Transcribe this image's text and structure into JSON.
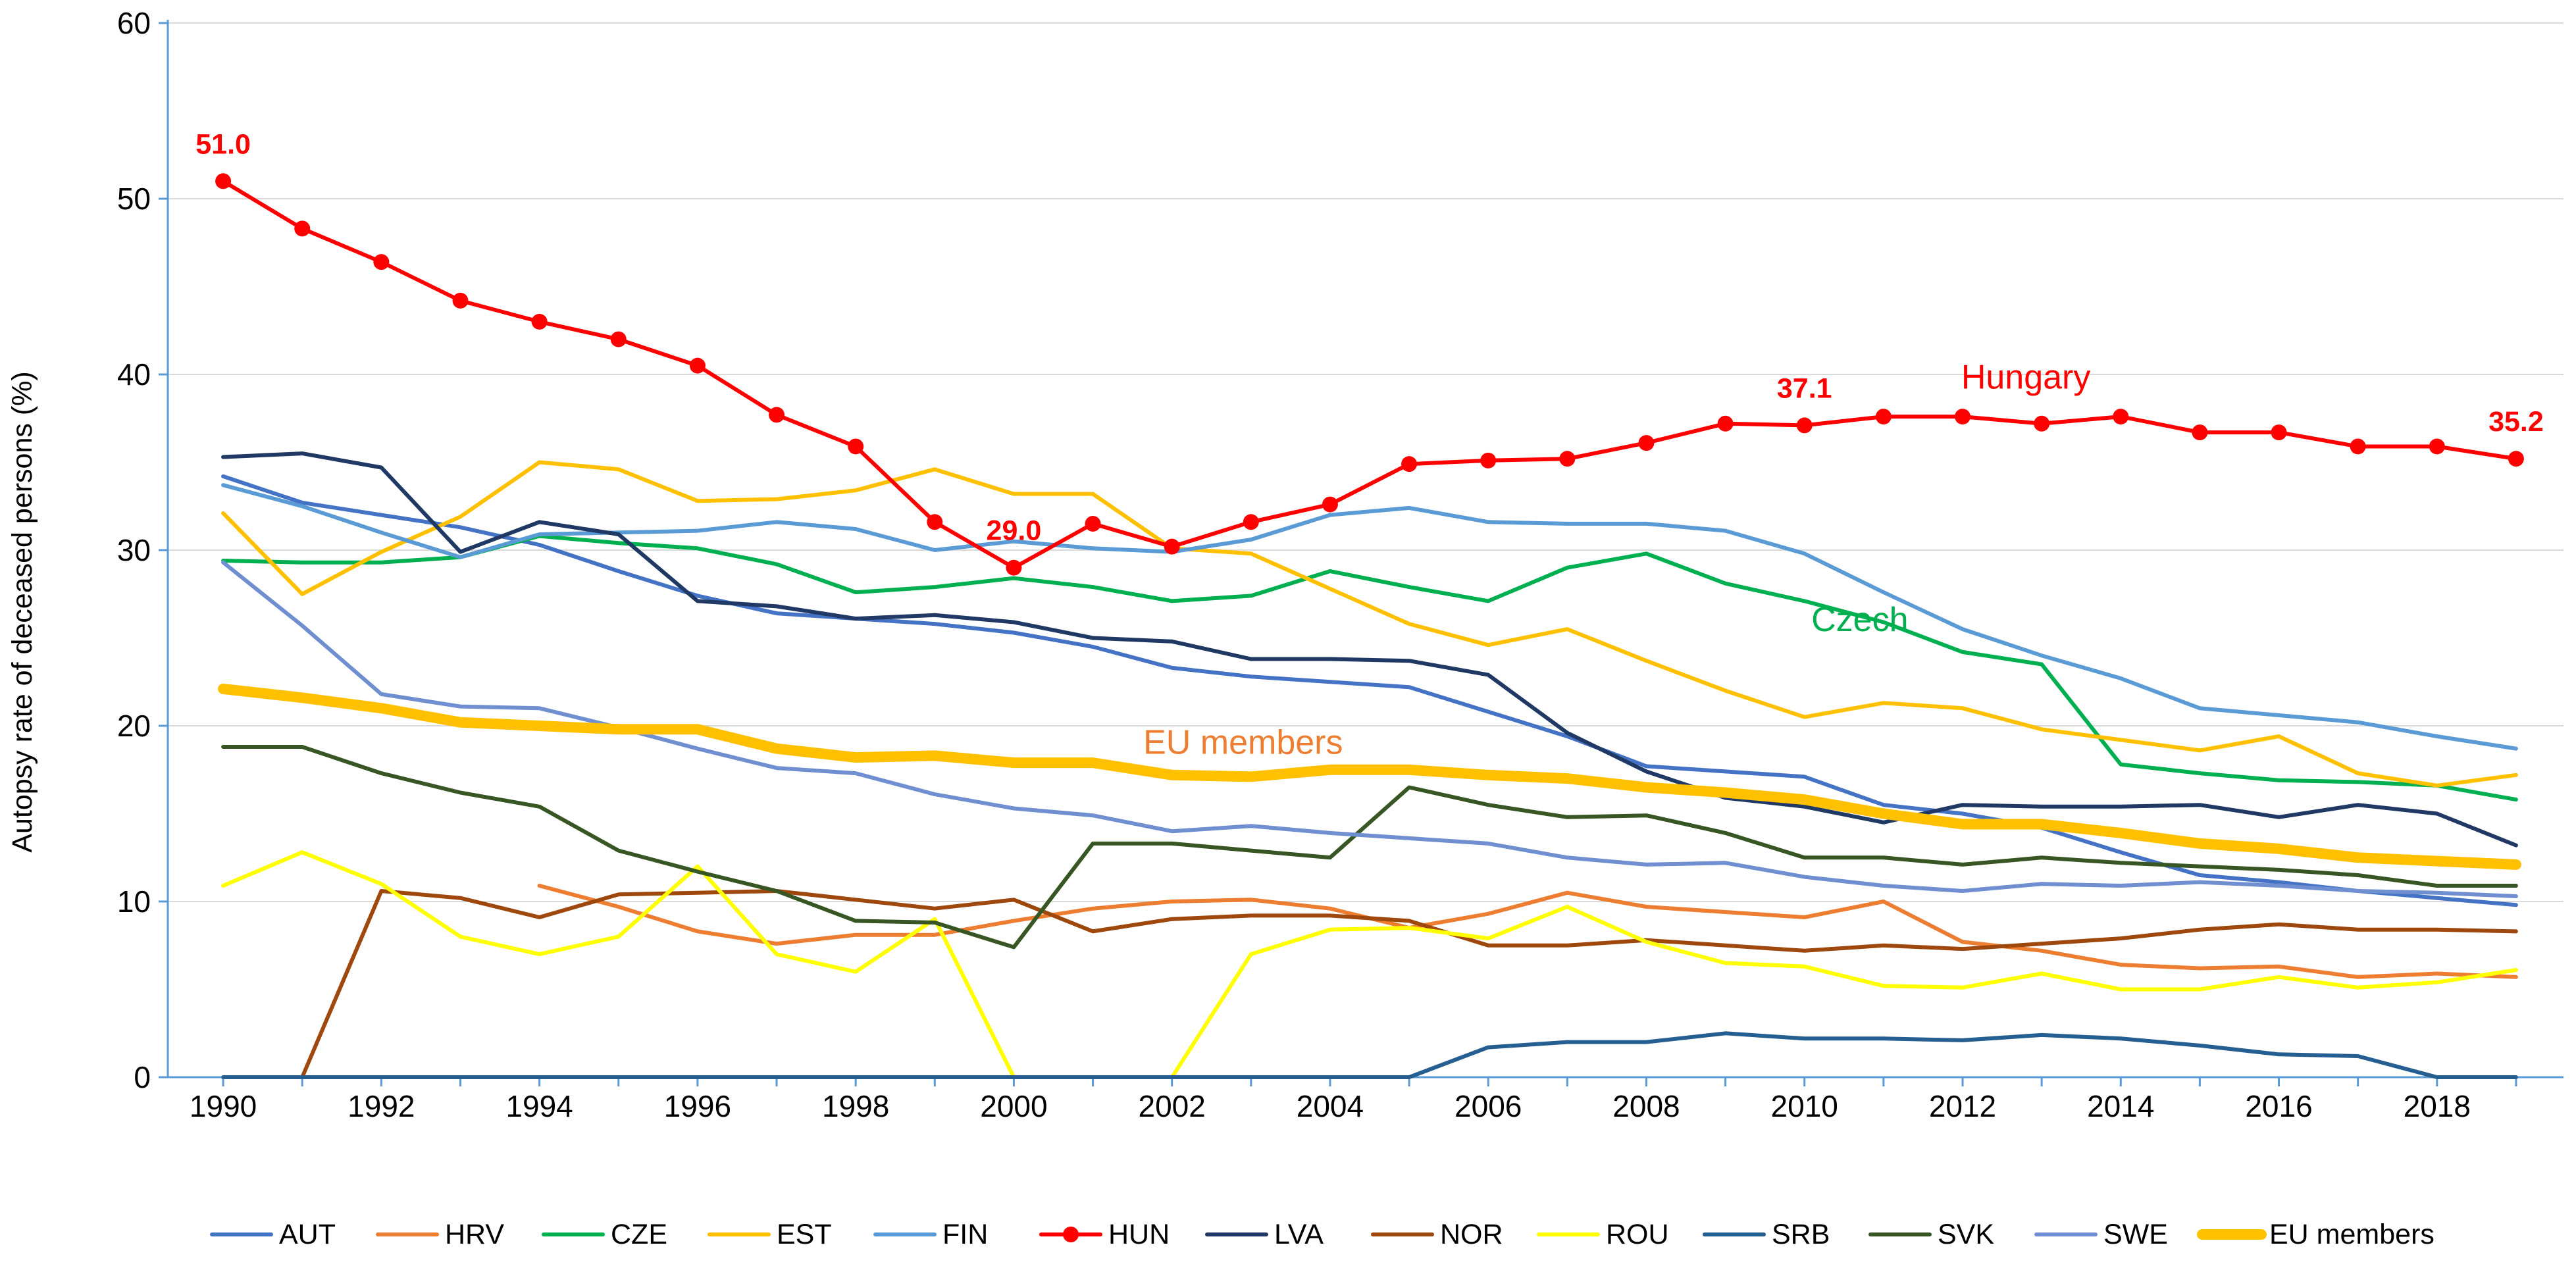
{
  "chart_data": {
    "type": "line",
    "title": "",
    "xlabel": "",
    "ylabel": "Autopsy rate of deceased persons (%)",
    "xlim": [
      1989.3,
      2019.6
    ],
    "ylim": [
      0,
      60
    ],
    "yticks": [
      0,
      10,
      20,
      30,
      40,
      50,
      60
    ],
    "xticks": [
      1990,
      1992,
      1994,
      1996,
      1998,
      2000,
      2002,
      2004,
      2006,
      2008,
      2010,
      2012,
      2014,
      2016,
      2018
    ],
    "grid": "horizontal",
    "legend": "bottom",
    "x": [
      1990,
      1991,
      1992,
      1993,
      1994,
      1995,
      1996,
      1997,
      1998,
      1999,
      2000,
      2001,
      2002,
      2003,
      2004,
      2005,
      2006,
      2007,
      2008,
      2009,
      2010,
      2011,
      2012,
      2013,
      2014,
      2015,
      2016,
      2017,
      2018,
      2019
    ],
    "series": [
      {
        "name": "AUT",
        "color": "#4472c4",
        "values": [
          34.2,
          32.7,
          32.0,
          31.3,
          30.3,
          28.8,
          27.4,
          26.4,
          26.1,
          25.8,
          25.3,
          24.5,
          23.3,
          22.8,
          22.5,
          22.2,
          20.8,
          19.4,
          17.7,
          17.4,
          17.1,
          15.5,
          15.0,
          14.2,
          12.8,
          11.5,
          11.1,
          10.6,
          10.2,
          9.8
        ]
      },
      {
        "name": "HRV",
        "color": "#ed7d31",
        "values": [
          null,
          null,
          null,
          null,
          10.9,
          9.7,
          8.3,
          7.6,
          8.1,
          8.1,
          8.9,
          9.6,
          10.0,
          10.1,
          9.6,
          8.5,
          9.3,
          10.5,
          9.7,
          9.4,
          9.1,
          10.0,
          7.7,
          7.2,
          6.4,
          6.2,
          6.3,
          5.7,
          5.9,
          5.7
        ]
      },
      {
        "name": "CZE",
        "color": "#00b050",
        "values": [
          29.4,
          29.3,
          29.3,
          29.6,
          30.8,
          30.4,
          30.1,
          29.2,
          27.6,
          27.9,
          28.4,
          27.9,
          27.1,
          27.4,
          28.8,
          27.9,
          27.1,
          29.0,
          29.8,
          28.1,
          27.1,
          25.9,
          24.2,
          23.5,
          17.8,
          17.3,
          16.9,
          16.8,
          16.6,
          15.8
        ]
      },
      {
        "name": "EST",
        "color": "#ffc000",
        "values": [
          32.1,
          27.5,
          29.9,
          31.9,
          35.0,
          34.6,
          32.8,
          32.9,
          33.4,
          34.6,
          33.2,
          33.2,
          30.1,
          29.8,
          27.8,
          25.8,
          24.6,
          25.5,
          23.7,
          22.0,
          20.5,
          21.3,
          21.0,
          19.8,
          19.2,
          18.6,
          19.4,
          17.3,
          16.6,
          17.2
        ]
      },
      {
        "name": "FIN",
        "color": "#5b9bd5",
        "values": [
          33.7,
          32.5,
          31.0,
          29.6,
          30.9,
          31.0,
          31.1,
          31.6,
          31.2,
          30.0,
          30.5,
          30.1,
          29.9,
          30.6,
          32.0,
          32.4,
          31.6,
          31.5,
          31.5,
          31.1,
          29.8,
          27.6,
          25.5,
          24.0,
          22.7,
          21.0,
          20.6,
          20.2,
          19.4,
          18.7
        ]
      },
      {
        "name": "HUN",
        "color": "#ff0000",
        "values": [
          51.0,
          48.3,
          46.4,
          44.2,
          43.0,
          42.0,
          40.5,
          37.7,
          35.9,
          31.6,
          29.0,
          31.5,
          30.2,
          31.6,
          32.6,
          34.9,
          35.1,
          35.2,
          36.1,
          37.2,
          37.1,
          37.6,
          37.6,
          37.2,
          37.6,
          36.7,
          36.7,
          35.9,
          35.9,
          35.2
        ]
      },
      {
        "name": "LVA",
        "color": "#203864",
        "values": [
          35.3,
          35.5,
          34.7,
          29.9,
          31.6,
          30.9,
          27.1,
          26.8,
          26.1,
          26.3,
          25.9,
          25.0,
          24.8,
          23.8,
          23.8,
          23.7,
          22.9,
          19.6,
          17.4,
          15.9,
          15.4,
          14.5,
          15.5,
          15.4,
          15.4,
          15.5,
          14.8,
          15.5,
          15.0,
          13.2
        ]
      },
      {
        "name": "NOR",
        "color": "#9e480e",
        "values": [
          null,
          0.0,
          10.6,
          10.2,
          9.1,
          10.4,
          10.5,
          10.6,
          10.1,
          9.6,
          10.1,
          8.3,
          9.0,
          9.2,
          9.2,
          8.9,
          7.5,
          7.5,
          7.8,
          7.5,
          7.2,
          7.5,
          7.3,
          7.6,
          7.9,
          8.4,
          8.7,
          8.4,
          8.4,
          8.3
        ]
      },
      {
        "name": "ROU",
        "color": "#ffff00",
        "values": [
          10.9,
          12.8,
          11.0,
          8.0,
          7.0,
          8.0,
          12.0,
          7.0,
          6.0,
          9.0,
          0.0,
          null,
          0.0,
          7.0,
          8.4,
          8.5,
          7.9,
          9.7,
          7.7,
          6.5,
          6.3,
          5.2,
          5.1,
          5.9,
          5.0,
          5.0,
          5.7,
          5.1,
          5.4,
          6.1
        ]
      },
      {
        "name": "SRB",
        "color": "#255e91",
        "values": [
          0.0,
          0.0,
          0.0,
          0.0,
          0.0,
          0.0,
          0.0,
          0.0,
          0.0,
          0.0,
          0.0,
          0.0,
          0.0,
          0.0,
          0.0,
          0.0,
          1.7,
          2.0,
          2.0,
          2.5,
          2.2,
          2.2,
          2.1,
          2.4,
          2.2,
          1.8,
          1.3,
          1.2,
          0.0,
          0.0
        ]
      },
      {
        "name": "SVK",
        "color": "#375623",
        "values": [
          18.8,
          18.8,
          17.3,
          16.2,
          15.4,
          12.9,
          11.7,
          10.6,
          8.9,
          8.8,
          7.4,
          13.3,
          13.3,
          12.9,
          12.5,
          16.5,
          15.5,
          14.8,
          14.9,
          13.9,
          12.5,
          12.5,
          12.1,
          12.5,
          12.2,
          12.0,
          11.8,
          11.5,
          10.9,
          10.9
        ]
      },
      {
        "name": "SWE",
        "color": "#6f8fd1",
        "values": [
          29.3,
          25.7,
          21.8,
          21.1,
          21.0,
          19.9,
          18.7,
          17.6,
          17.3,
          16.1,
          15.3,
          14.9,
          14.0,
          14.3,
          13.9,
          13.6,
          13.3,
          12.5,
          12.1,
          12.2,
          11.4,
          10.9,
          10.6,
          11.0,
          10.9,
          11.1,
          10.9,
          10.6,
          10.5,
          10.3
        ]
      },
      {
        "name": "EU members",
        "color": "#ffc000",
        "values": [
          22.1,
          21.6,
          21.0,
          20.2,
          20.0,
          19.8,
          19.8,
          18.7,
          18.2,
          18.3,
          17.9,
          17.9,
          17.2,
          17.1,
          17.5,
          17.5,
          17.2,
          17.0,
          16.5,
          16.2,
          15.8,
          15.0,
          14.4,
          14.4,
          13.9,
          13.3,
          13.0,
          12.5,
          12.3,
          12.1
        ]
      }
    ],
    "point_labels": [
      {
        "series": "HUN",
        "x": 1990,
        "y": 51.0,
        "text": "51.0"
      },
      {
        "series": "HUN",
        "x": 2000,
        "y": 29.0,
        "text": "29.0"
      },
      {
        "series": "HUN",
        "x": 2010,
        "y": 37.1,
        "text": "37.1"
      },
      {
        "series": "HUN",
        "x": 2019,
        "y": 35.2,
        "text": "35.2"
      }
    ],
    "annotations": [
      {
        "text": "Hungary",
        "x": 2012.8,
        "y": 39.2,
        "color": "#ff0000"
      },
      {
        "text": "Czech",
        "x": 2010.7,
        "y": 25.4,
        "color": "#00b050"
      },
      {
        "text": "EU members",
        "x": 2002.9,
        "y": 18.4,
        "color": "#ed7d31"
      }
    ]
  }
}
